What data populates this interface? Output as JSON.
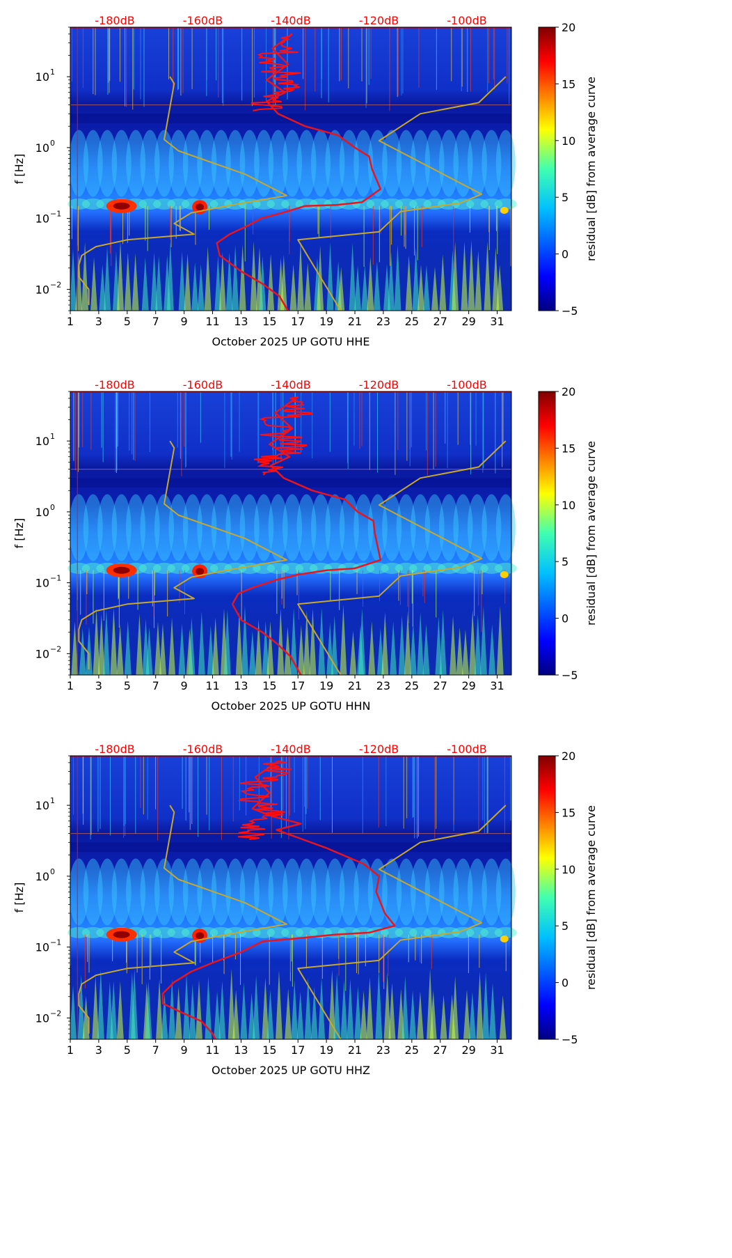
{
  "chart_data": [
    {
      "type": "heatmap",
      "title": "",
      "xlabel": "October 2025 UP GOTU  HHE",
      "ylabel": "f [Hz]",
      "xlim": [
        1,
        32
      ],
      "ylim": [
        0.005,
        50
      ],
      "yscale": "log",
      "x_ticks": [
        "1",
        "3",
        "5",
        "7",
        "9",
        "11",
        "13",
        "15",
        "17",
        "19",
        "21",
        "23",
        "25",
        "27",
        "29",
        "31"
      ],
      "y_ticks": [
        {
          "label": "10",
          "exp": "−2",
          "value": 0.01
        },
        {
          "label": "10",
          "exp": "−1",
          "value": 0.1
        },
        {
          "label": "10",
          "exp": "0",
          "value": 1
        },
        {
          "label": "10",
          "exp": "1",
          "value": 10
        }
      ],
      "top_labels": [
        "-180dB",
        "-160dB",
        "-140dB",
        "-120dB",
        "-100dB"
      ],
      "colorbar": {
        "label": "residual [dB] from average curve",
        "min": -5,
        "max": 20,
        "ticks": [
          "−5",
          "0",
          "5",
          "10",
          "15",
          "20"
        ]
      },
      "series": [
        {
          "name": "noise model bounds",
          "color": "#c8a82a",
          "points": [
            [
              8,
              10
            ],
            [
              8.3,
              8
            ],
            [
              7.6,
              1.3
            ],
            [
              8.6,
              0.9
            ],
            [
              13.3,
              0.42
            ],
            [
              16.2,
              0.21
            ],
            [
              12,
              0.15
            ],
            [
              9.5,
              0.12
            ],
            [
              8.3,
              0.085
            ],
            [
              9.7,
              0.06
            ],
            [
              5,
              0.05
            ],
            [
              2.8,
              0.04
            ],
            [
              1.8,
              0.03
            ],
            [
              1.6,
              0.022
            ],
            [
              1.6,
              0.015
            ],
            [
              2.3,
              0.01
            ],
            [
              2.3,
              0.006
            ]
          ]
        },
        {
          "name": "noise model bounds (upper)",
          "color": "#c8a82a",
          "points": [
            [
              31.6,
              10
            ],
            [
              29.7,
              4.3
            ],
            [
              25.6,
              3
            ],
            [
              22.7,
              1.25
            ],
            [
              29.9,
              0.22
            ],
            [
              28.4,
              0.165
            ],
            [
              24.2,
              0.125
            ],
            [
              22.7,
              0.065
            ],
            [
              17,
              0.05
            ],
            [
              20,
              0.005
            ]
          ]
        },
        {
          "name": "station PSD",
          "color": "#e8141e",
          "points": [
            [
              16.6,
              40
            ],
            [
              15.2,
              25
            ],
            [
              16.3,
              15
            ],
            [
              14.8,
              9
            ],
            [
              16.1,
              6
            ],
            [
              14.8,
              4.5
            ],
            [
              15.6,
              3
            ],
            [
              17.5,
              2
            ],
            [
              19.8,
              1.5
            ],
            [
              21,
              1.0
            ],
            [
              22,
              0.75
            ],
            [
              22.2,
              0.5
            ],
            [
              22.8,
              0.26
            ],
            [
              21.5,
              0.17
            ],
            [
              19.7,
              0.155
            ],
            [
              17.5,
              0.15
            ],
            [
              15.9,
              0.12
            ],
            [
              14.4,
              0.1
            ],
            [
              13.4,
              0.078
            ],
            [
              12.2,
              0.06
            ],
            [
              11.3,
              0.045
            ],
            [
              11.5,
              0.03
            ],
            [
              13,
              0.018
            ],
            [
              14.5,
              0.012
            ],
            [
              15.7,
              0.008
            ],
            [
              16.3,
              0.005
            ]
          ]
        }
      ]
    },
    {
      "type": "heatmap",
      "title": "",
      "xlabel": "October 2025 UP GOTU  HHN",
      "ylabel": "f [Hz]",
      "xlim": [
        1,
        32
      ],
      "ylim": [
        0.005,
        50
      ],
      "yscale": "log",
      "x_ticks": [
        "1",
        "3",
        "5",
        "7",
        "9",
        "11",
        "13",
        "15",
        "17",
        "19",
        "21",
        "23",
        "25",
        "27",
        "29",
        "31"
      ],
      "y_ticks": [
        {
          "label": "10",
          "exp": "−2",
          "value": 0.01
        },
        {
          "label": "10",
          "exp": "−1",
          "value": 0.1
        },
        {
          "label": "10",
          "exp": "0",
          "value": 1
        },
        {
          "label": "10",
          "exp": "1",
          "value": 10
        }
      ],
      "top_labels": [
        "-180dB",
        "-160dB",
        "-140dB",
        "-120dB",
        "-100dB"
      ],
      "colorbar": {
        "label": "residual [dB] from average curve",
        "min": -5,
        "max": 20,
        "ticks": [
          "−5",
          "0",
          "5",
          "10",
          "15",
          "20"
        ]
      },
      "series": [
        {
          "name": "noise model bounds",
          "color": "#c8a82a",
          "points": [
            [
              8,
              10
            ],
            [
              8.3,
              8
            ],
            [
              7.6,
              1.3
            ],
            [
              8.6,
              0.9
            ],
            [
              13.3,
              0.42
            ],
            [
              16.2,
              0.21
            ],
            [
              12,
              0.15
            ],
            [
              9.5,
              0.12
            ],
            [
              8.3,
              0.085
            ],
            [
              9.7,
              0.06
            ],
            [
              5,
              0.05
            ],
            [
              2.8,
              0.04
            ],
            [
              1.8,
              0.03
            ],
            [
              1.6,
              0.022
            ],
            [
              1.6,
              0.015
            ],
            [
              2.3,
              0.01
            ],
            [
              2.3,
              0.006
            ]
          ]
        },
        {
          "name": "noise model bounds (upper)",
          "color": "#c8a82a",
          "points": [
            [
              31.6,
              10
            ],
            [
              29.7,
              4.3
            ],
            [
              25.6,
              3
            ],
            [
              22.7,
              1.25
            ],
            [
              29.9,
              0.22
            ],
            [
              28.4,
              0.165
            ],
            [
              24.2,
              0.125
            ],
            [
              22.7,
              0.065
            ],
            [
              17,
              0.05
            ],
            [
              20,
              0.005
            ]
          ]
        },
        {
          "name": "station PSD",
          "color": "#e8141e",
          "points": [
            [
              17,
              42
            ],
            [
              15.4,
              25
            ],
            [
              16.6,
              15
            ],
            [
              15,
              9
            ],
            [
              16.4,
              6
            ],
            [
              15.1,
              4.5
            ],
            [
              16,
              3
            ],
            [
              18,
              2
            ],
            [
              20.3,
              1.5
            ],
            [
              21.2,
              1.0
            ],
            [
              22.3,
              0.75
            ],
            [
              22.4,
              0.5
            ],
            [
              22.8,
              0.21
            ],
            [
              21,
              0.16
            ],
            [
              19,
              0.15
            ],
            [
              17,
              0.13
            ],
            [
              15.5,
              0.11
            ],
            [
              13.8,
              0.085
            ],
            [
              12.8,
              0.07
            ],
            [
              12.4,
              0.05
            ],
            [
              13,
              0.03
            ],
            [
              14.5,
              0.02
            ],
            [
              15.5,
              0.014
            ],
            [
              16.5,
              0.009
            ],
            [
              17.2,
              0.005
            ]
          ]
        }
      ]
    },
    {
      "type": "heatmap",
      "title": "",
      "xlabel": "October 2025 UP GOTU  HHZ",
      "ylabel": "f [Hz]",
      "xlim": [
        1,
        32
      ],
      "ylim": [
        0.005,
        50
      ],
      "yscale": "log",
      "x_ticks": [
        "1",
        "3",
        "5",
        "7",
        "9",
        "11",
        "13",
        "15",
        "17",
        "19",
        "21",
        "23",
        "25",
        "27",
        "29",
        "31"
      ],
      "y_ticks": [
        {
          "label": "10",
          "exp": "−2",
          "value": 0.01
        },
        {
          "label": "10",
          "exp": "−1",
          "value": 0.1
        },
        {
          "label": "10",
          "exp": "0",
          "value": 1
        },
        {
          "label": "10",
          "exp": "1",
          "value": 10
        }
      ],
      "top_labels": [
        "-180dB",
        "-160dB",
        "-140dB",
        "-120dB",
        "-100dB"
      ],
      "colorbar": {
        "label": "residual [dB] from average curve",
        "min": -5,
        "max": 20,
        "ticks": [
          "−5",
          "0",
          "5",
          "10",
          "15",
          "20"
        ]
      },
      "series": [
        {
          "name": "noise model bounds",
          "color": "#c8a82a",
          "points": [
            [
              8,
              10
            ],
            [
              8.3,
              8
            ],
            [
              7.6,
              1.3
            ],
            [
              8.6,
              0.9
            ],
            [
              13.3,
              0.42
            ],
            [
              16.2,
              0.21
            ],
            [
              12,
              0.15
            ],
            [
              9.5,
              0.12
            ],
            [
              8.3,
              0.085
            ],
            [
              9.7,
              0.06
            ],
            [
              5,
              0.05
            ],
            [
              2.8,
              0.04
            ],
            [
              1.8,
              0.03
            ],
            [
              1.6,
              0.022
            ],
            [
              1.6,
              0.015
            ],
            [
              2.3,
              0.01
            ],
            [
              2.3,
              0.006
            ]
          ]
        },
        {
          "name": "noise model bounds (upper)",
          "color": "#c8a82a",
          "points": [
            [
              31.6,
              10
            ],
            [
              29.7,
              4.3
            ],
            [
              25.6,
              3
            ],
            [
              22.7,
              1.25
            ],
            [
              29.9,
              0.22
            ],
            [
              28.4,
              0.165
            ],
            [
              24.2,
              0.125
            ],
            [
              22.7,
              0.065
            ],
            [
              17,
              0.05
            ],
            [
              20,
              0.005
            ]
          ]
        },
        {
          "name": "station PSD",
          "color": "#e8141e",
          "points": [
            [
              15.6,
              42
            ],
            [
              14,
              25
            ],
            [
              15,
              15
            ],
            [
              13.8,
              9
            ],
            [
              15.2,
              7
            ],
            [
              17.2,
              5.5
            ],
            [
              15.5,
              4.5
            ],
            [
              17,
              3.5
            ],
            [
              19,
              2.5
            ],
            [
              21.6,
              1.5
            ],
            [
              22.7,
              1.0
            ],
            [
              22.5,
              0.6
            ],
            [
              23.1,
              0.3
            ],
            [
              23.8,
              0.2
            ],
            [
              22,
              0.16
            ],
            [
              19.6,
              0.15
            ],
            [
              16.5,
              0.13
            ],
            [
              14.5,
              0.12
            ],
            [
              13,
              0.085
            ],
            [
              11,
              0.06
            ],
            [
              9.5,
              0.045
            ],
            [
              8.3,
              0.032
            ],
            [
              7.5,
              0.022
            ],
            [
              7.5,
              0.016
            ],
            [
              8.8,
              0.012
            ],
            [
              10.2,
              0.009
            ],
            [
              11,
              0.006
            ],
            [
              11.2,
              0.005
            ]
          ]
        }
      ]
    }
  ]
}
